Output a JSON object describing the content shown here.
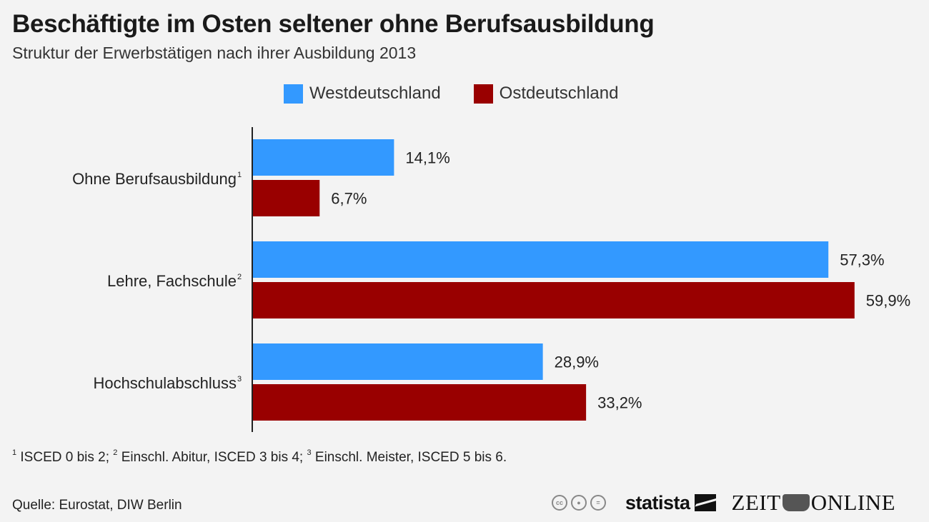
{
  "header": {
    "title": "Beschäftigte im Osten seltener ohne Berufsausbildung",
    "subtitle": "Struktur der Erwerbstätigen nach ihrer Ausbildung 2013"
  },
  "legend": [
    {
      "label": "Westdeutschland",
      "color": "#3399ff"
    },
    {
      "label": "Ostdeutschland",
      "color": "#990000"
    }
  ],
  "chart_data": {
    "type": "bar",
    "orientation": "horizontal",
    "title": "Beschäftigte im Osten seltener ohne Berufsausbildung",
    "subtitle": "Struktur der Erwerbstätigen nach ihrer Ausbildung 2013",
    "categories": [
      "Ohne Berufsausbildung",
      "Lehre, Fachschule",
      "Hochschulabschluss"
    ],
    "category_footnote_marks": [
      "1",
      "2",
      "3"
    ],
    "series": [
      {
        "name": "Westdeutschland",
        "color": "#3399ff",
        "values": [
          14.1,
          57.3,
          28.9
        ],
        "labels": [
          "14,1%",
          "57,3%",
          "28,9%"
        ]
      },
      {
        "name": "Ostdeutschland",
        "color": "#990000",
        "values": [
          6.7,
          59.9,
          33.2
        ],
        "labels": [
          "6,7%",
          "59,9%",
          "33,2%"
        ]
      }
    ],
    "xlabel": "",
    "ylabel": "",
    "unit": "%",
    "xlim": [
      0,
      65
    ],
    "grid": false,
    "legend_position": "top"
  },
  "footnote": {
    "parts": [
      {
        "mark": "1",
        "text": " ISCED 0 bis 2; "
      },
      {
        "mark": "2",
        "text": " Einschl. Abitur, ISCED 3 bis 4; "
      },
      {
        "mark": "3",
        "text": " Einschl. Meister, ISCED 5 bis 6."
      }
    ]
  },
  "source": "Quelle: Eurostat, DIW Berlin",
  "branding": {
    "license_icons": [
      "cc-icon",
      "by-icon",
      "nd-icon"
    ],
    "cc_text": "cc",
    "statista": "statista",
    "zeit_left": "ZEIT",
    "zeit_right": "ONLINE"
  }
}
